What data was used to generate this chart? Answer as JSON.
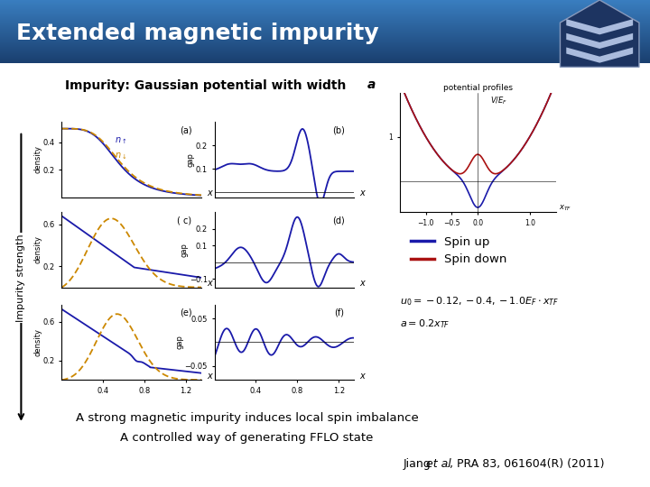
{
  "title": "Extended magnetic impurity",
  "title_bg_color_top": "#1a4f8a",
  "title_bg_color_bot": "#2a6db5",
  "title_text_color": "#FFFFFF",
  "slide_bg_color": "#FFFFFF",
  "spin_up_color": "#1a1aaa",
  "spin_down_color": "#aa1111",
  "orange_color": "#cc8800",
  "pot_title": "potential profiles",
  "bottom_text1": "A strong magnetic impurity induces local spin imbalance",
  "bottom_text2": "A controlled way of generating FFLO state"
}
